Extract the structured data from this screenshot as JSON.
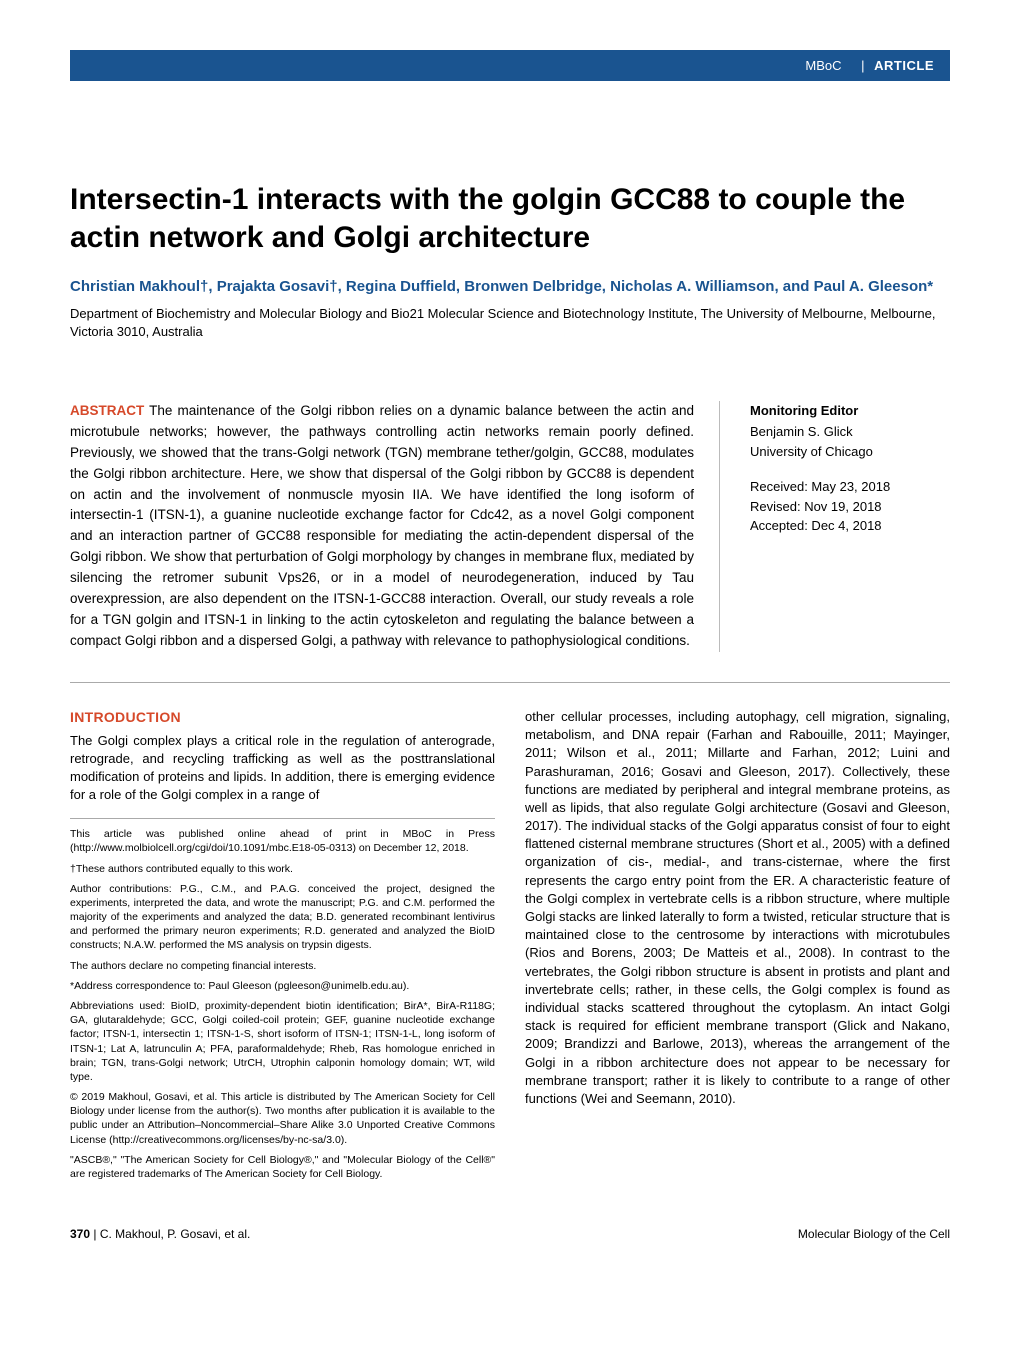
{
  "banner": {
    "journal": "MBoC",
    "pipe": "|",
    "type": "ARTICLE"
  },
  "title": "Intersectin-1 interacts with the golgin GCC88 to couple the actin network and Golgi architecture",
  "authors": "Christian Makhoul†, Prajakta Gosavi†, Regina Duffield, Bronwen Delbridge, Nicholas A. Williamson, and Paul A. Gleeson*",
  "affiliation": "Department of Biochemistry and Molecular Biology and Bio21 Molecular Science and Biotechnology Institute, The University of Melbourne, Melbourne, Victoria 3010, Australia",
  "abstract": {
    "label": "ABSTRACT",
    "text": " The maintenance of the Golgi ribbon relies on a dynamic balance between the actin and microtubule networks; however, the pathways controlling actin networks remain poorly defined. Previously, we showed that the trans-Golgi network (TGN) membrane tether/golgin, GCC88, modulates the Golgi ribbon architecture. Here, we show that dispersal of the Golgi ribbon by GCC88 is dependent on actin and the involvement of nonmuscle myosin IIA. We have identified the long isoform of intersectin-1 (ITSN-1), a guanine nucleotide exchange factor for Cdc42, as a novel Golgi component and an interaction partner of GCC88 responsible for mediating the actin-dependent dispersal of the Golgi ribbon. We show that perturbation of Golgi morphology by changes in membrane flux, mediated by silencing the retromer subunit Vps26, or in a model of neurodegeneration, induced by Tau overexpression, are also dependent on the ITSN-1-GCC88 interaction. Overall, our study reveals a role for a TGN golgin and ITSN-1 in linking to the actin cytoskeleton and regulating the balance between a compact Golgi ribbon and a dispersed Golgi, a pathway with relevance to pathophysiological conditions."
  },
  "sidebar": {
    "editor_label": "Monitoring Editor",
    "editor_name": "Benjamin S. Glick",
    "editor_affil": "University of Chicago",
    "received": "Received: May 23, 2018",
    "revised": "Revised: Nov 19, 2018",
    "accepted": "Accepted: Dec 4, 2018"
  },
  "intro": {
    "heading": "INTRODUCTION",
    "col1_para": "The Golgi complex plays a critical role in the regulation of anterograde, retrograde, and recycling trafficking as well as the posttranslational modification of proteins and lipids. In addition, there is emerging evidence for a role of the Golgi complex in a range of",
    "col2_para": "other cellular processes, including autophagy, cell migration, signaling, metabolism, and DNA repair (Farhan and Rabouille, 2011; Mayinger, 2011; Wilson et al., 2011; Millarte and Farhan, 2012; Luini and Parashuraman, 2016; Gosavi and Gleeson, 2017). Collectively, these functions are mediated by peripheral and integral membrane proteins, as well as lipids, that also regulate Golgi architecture (Gosavi and Gleeson, 2017). The individual stacks of the Golgi apparatus consist of four to eight flattened cisternal membrane structures (Short et al., 2005) with a defined organization of cis-, medial-, and trans-cisternae, where the first represents the cargo entry point from the ER. A characteristic feature of the Golgi complex in vertebrate cells is a ribbon structure, where multiple Golgi stacks are linked laterally to form a twisted, reticular structure that is maintained close to the centrosome by interactions with microtubules (Rios and Borens, 2003; De Matteis et al., 2008). In contrast to the vertebrates, the Golgi ribbon structure is absent in protists and plant and invertebrate cells; rather, in these cells, the Golgi complex is found as individual stacks scattered throughout the cytoplasm. An intact Golgi stack is required for efficient membrane transport (Glick and Nakano, 2009; Brandizzi and Barlowe, 2013), whereas the arrangement of the Golgi in a ribbon architecture does not appear to be necessary for membrane transport; rather it is likely to contribute to a range of other functions (Wei and Seemann, 2010)."
  },
  "footnotes": {
    "f1": "This article was published online ahead of print in MBoC in Press (http://www.molbiolcell.org/cgi/doi/10.1091/mbc.E18-05-0313) on December 12, 2018.",
    "f2": "†These authors contributed equally to this work.",
    "f3": "Author contributions: P.G., C.M., and P.A.G. conceived the project, designed the experiments, interpreted the data, and wrote the manuscript; P.G. and C.M. performed the majority of the experiments and analyzed the data; B.D. generated recombinant lentivirus and performed the primary neuron experiments; R.D. generated and analyzed the BioID constructs; N.A.W. performed the MS analysis on trypsin digests.",
    "f4": "The authors declare no competing financial interests.",
    "f5": "*Address correspondence to: Paul Gleeson (pgleeson@unimelb.edu.au).",
    "f6": "Abbreviations used: BioID, proximity-dependent biotin identification; BirA*, BirA-R118G; GA, glutaraldehyde; GCC, Golgi coiled-coil protein; GEF, guanine nucleotide exchange factor; ITSN-1, intersectin 1; ITSN-1-S, short isoform of ITSN-1; ITSN-1-L, long isoform of ITSN-1; Lat A, latrunculin A; PFA, paraformaldehyde; Rheb, Ras homologue enriched in brain; TGN, trans-Golgi network; UtrCH, Utrophin calponin homology domain; WT, wild type.",
    "f7": "© 2019 Makhoul, Gosavi, et al. This article is distributed by The American Society for Cell Biology under license from the author(s). Two months after publication it is available to the public under an Attribution–Noncommercial–Share Alike 3.0 Unported Creative Commons License (http://creativecommons.org/licenses/by-nc-sa/3.0).",
    "f8": "\"ASCB®,\" \"The American Society for Cell Biology®,\" and \"Molecular Biology of the Cell®\" are registered trademarks of The American Society for Cell Biology."
  },
  "footer": {
    "page": "370",
    "pipe": " | ",
    "authors_short": "C. Makhoul, P. Gosavi, et al.",
    "journal_full": "Molecular Biology of the Cell"
  },
  "colors": {
    "banner_bg": "#1a5490",
    "accent_orange": "#d6492a",
    "text": "#000000",
    "rule": "#aaaaaa"
  },
  "typography": {
    "title_fontsize": 30,
    "body_fontsize": 13,
    "abstract_fontsize": 13.5,
    "footnote_fontsize": 10.5
  }
}
